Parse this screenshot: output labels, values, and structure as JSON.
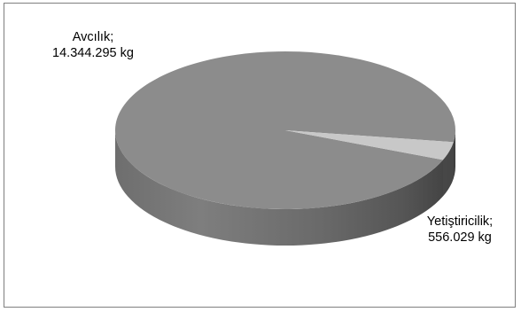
{
  "chart_data": {
    "type": "pie",
    "style": "3d",
    "slices": [
      {
        "label": "Avcılık",
        "value": 14344295,
        "display_value": "14.344.295 kg",
        "color": "#8c8c8c"
      },
      {
        "label": "Yetiştiricilik",
        "value": 556029,
        "display_value": "556.029 kg",
        "color": "#c8c8c8"
      }
    ],
    "labels": {
      "slice0": {
        "name": "Avcılık;",
        "value": "14.344.295 kg"
      },
      "slice1": {
        "name": "Yetiştiricilik;",
        "value": "556.029 kg"
      }
    },
    "legend": "none"
  }
}
